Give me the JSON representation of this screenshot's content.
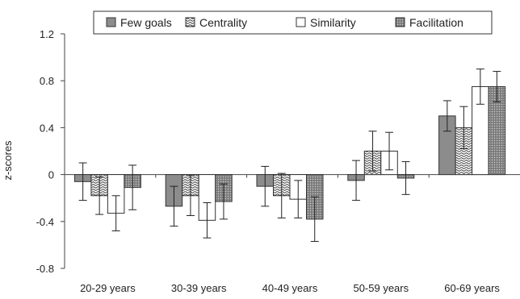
{
  "chart_data": {
    "type": "bar",
    "ylabel": "z-scores",
    "xlabel": "",
    "ylim": [
      -0.8,
      1.2
    ],
    "yticks": [
      -0.8,
      -0.4,
      0,
      0.4,
      0.8,
      1.2
    ],
    "ytick_labels": [
      "-0.8",
      "-0.4",
      "0",
      "0.4",
      "0.8",
      "1.2"
    ],
    "categories": [
      "20-29 years",
      "30-39 years",
      "40-49 years",
      "50-59 years",
      "60-69 years"
    ],
    "legend_position": "top",
    "error_bars": true,
    "series": [
      {
        "name": "Few goals",
        "pattern": "solid-gray",
        "color": "#8c8c8c",
        "values": [
          -0.06,
          -0.27,
          -0.1,
          -0.05,
          0.5
        ],
        "errors": [
          0.16,
          0.17,
          0.17,
          0.17,
          0.13
        ]
      },
      {
        "name": "Centrality",
        "pattern": "wavy",
        "color": "#ffffff",
        "values": [
          -0.18,
          -0.18,
          -0.18,
          0.2,
          0.4
        ],
        "errors": [
          0.16,
          0.17,
          0.19,
          0.17,
          0.18
        ]
      },
      {
        "name": "Similarity",
        "pattern": "white",
        "color": "#ffffff",
        "values": [
          -0.33,
          -0.39,
          -0.21,
          0.2,
          0.75
        ],
        "errors": [
          0.15,
          0.15,
          0.16,
          0.16,
          0.15
        ]
      },
      {
        "name": "Facilitation",
        "pattern": "dotted-gray",
        "color": "#8c8c8c",
        "values": [
          -0.11,
          -0.23,
          -0.38,
          -0.03,
          0.75
        ],
        "errors": [
          0.19,
          0.15,
          0.19,
          0.14,
          0.13
        ]
      }
    ]
  }
}
